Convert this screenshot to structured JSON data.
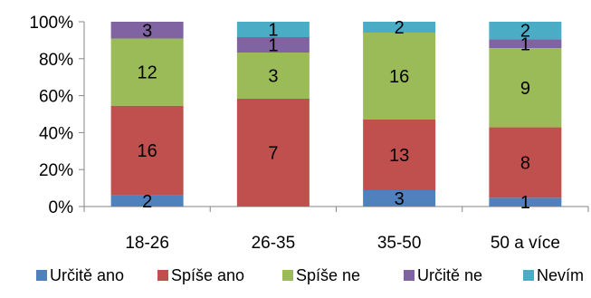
{
  "chart_data": {
    "type": "bar",
    "stacked": true,
    "normalized_100_percent": true,
    "categories": [
      "18-26",
      "26-35",
      "35-50",
      "50 a více"
    ],
    "series": [
      {
        "name": "Určitě ano",
        "color": "#4F81BD",
        "values": [
          2,
          0,
          3,
          1
        ]
      },
      {
        "name": "Spíše ano",
        "color": "#C0504D",
        "values": [
          16,
          7,
          13,
          8
        ]
      },
      {
        "name": "Spíše ne",
        "color": "#9BBB59",
        "values": [
          12,
          3,
          16,
          9
        ]
      },
      {
        "name": "Určitě ne",
        "color": "#8064A2",
        "values": [
          3,
          1,
          0,
          1
        ]
      },
      {
        "name": "Nevím",
        "color": "#4BACC6",
        "values": [
          0,
          1,
          2,
          2
        ]
      }
    ],
    "ylim": [
      0,
      100
    ],
    "yticks": [
      "0%",
      "20%",
      "40%",
      "60%",
      "80%",
      "100%"
    ],
    "grid": false,
    "legend": "bottom",
    "title": "",
    "xlabel": "",
    "ylabel": ""
  }
}
